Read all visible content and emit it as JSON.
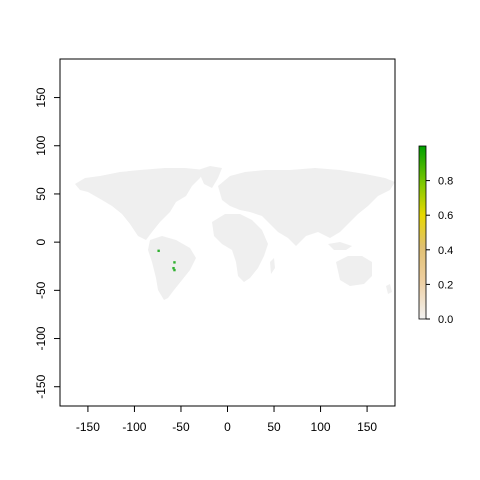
{
  "map": {
    "x_axis": {
      "range": [
        -180,
        180
      ],
      "ticks": [
        "-150",
        "-100",
        "-50",
        "0",
        "50",
        "100",
        "150"
      ],
      "tick_values": [
        -150,
        -100,
        -50,
        0,
        50,
        100,
        150
      ]
    },
    "y_axis": {
      "range": [
        -170,
        190
      ],
      "ticks": [
        "-150",
        "-100",
        "-50",
        "0",
        "50",
        "100",
        "150"
      ],
      "tick_values": [
        -150,
        -100,
        -50,
        0,
        50,
        100,
        150
      ]
    },
    "land_color": "#efefef",
    "highlight_color": "#30b030",
    "highlights": [
      {
        "lon": -57,
        "lat": -21,
        "value": 0.9
      },
      {
        "lon": -58,
        "lat": -27,
        "value": 0.95
      },
      {
        "lon": -57,
        "lat": -29,
        "value": 0.85
      },
      {
        "lon": -74,
        "lat": -9,
        "value": 0.7
      }
    ]
  },
  "legend": {
    "ticks": [
      "0.8",
      "0.6",
      "0.4",
      "0.2",
      "0.0"
    ],
    "tick_values": [
      0.8,
      0.6,
      0.4,
      0.2,
      0.0
    ],
    "range": [
      0,
      1
    ],
    "colors": [
      "#f2f2f2",
      "#eecfa1",
      "#e0c070",
      "#e8d800",
      "#80c800",
      "#00a000"
    ]
  }
}
